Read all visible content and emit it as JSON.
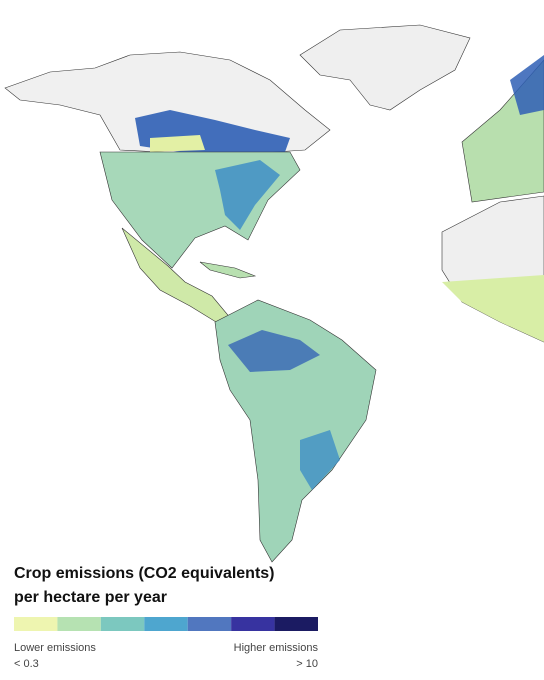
{
  "legend": {
    "title_lines": [
      "Crop emissions (CO2 equivalents)",
      "per hectare per year"
    ],
    "colors": [
      "#eef5b0",
      "#b6e2b2",
      "#7cc8bf",
      "#4ea6cf",
      "#5177bf",
      "#3733a0",
      "#1b1b62"
    ],
    "low_label": "Lower emissions",
    "low_value": "< 0.3",
    "high_label": "Higher emissions",
    "high_value": "> 10"
  }
}
